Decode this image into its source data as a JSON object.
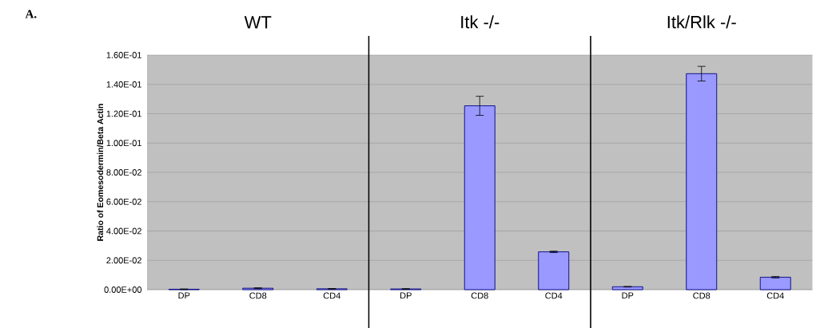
{
  "chart_data": [
    {
      "type": "bar",
      "title": "WT",
      "ylabel": "Ratio of Eomesodermin/Beta Actin",
      "annotations": [
        "A."
      ],
      "categories": [
        "DP",
        "CD8",
        "CD4"
      ],
      "values": [
        0.0003,
        0.001,
        0.0006
      ],
      "errors": [
        0.0002,
        0.0003,
        0.0002
      ],
      "color": "#9999ff",
      "ylim": [
        0,
        0.16
      ],
      "yticks": [
        {
          "value": 0,
          "label": "0.00E+00"
        },
        {
          "value": 0.02,
          "label": "2.00E-02"
        },
        {
          "value": 0.04,
          "label": "4.00E-02"
        },
        {
          "value": 0.06,
          "label": "6.00E-02"
        },
        {
          "value": 0.08,
          "label": "8.00E-02"
        },
        {
          "value": 0.1,
          "label": "1.00E-01"
        },
        {
          "value": 0.12,
          "label": "1.20E-01"
        },
        {
          "value": 0.14,
          "label": "1.40E-01"
        },
        {
          "value": 0.16,
          "label": "1.60E-01"
        }
      ],
      "grid": "y"
    },
    {
      "type": "bar",
      "title": "Itk -/-",
      "categories": [
        "DP",
        "CD8",
        "CD4"
      ],
      "values": [
        0.0005,
        0.1254,
        0.0258
      ],
      "errors": [
        0.0002,
        0.0065,
        0.0005
      ],
      "color": "#9999ff",
      "ylim": [
        0,
        0.16
      ],
      "yticks": [
        {
          "value": 0,
          "label": null
        },
        {
          "value": 0.02,
          "label": null
        },
        {
          "value": 0.04,
          "label": null
        },
        {
          "value": 0.06,
          "label": null
        },
        {
          "value": 0.08,
          "label": null
        },
        {
          "value": 0.1,
          "label": null
        },
        {
          "value": 0.12,
          "label": null
        },
        {
          "value": 0.14,
          "label": null
        },
        {
          "value": 0.16,
          "label": null
        }
      ],
      "grid": "y",
      "tick_labels": "x"
    },
    {
      "type": "bar",
      "title": "Itk/Rlk -/-",
      "categories": [
        "DP",
        "CD8",
        "CD4"
      ],
      "values": [
        0.002,
        0.1473,
        0.0085
      ],
      "errors": [
        0.0002,
        0.005,
        0.0005
      ],
      "color": "#9999ff",
      "ylim": [
        0,
        0.16
      ],
      "yticks": [
        {
          "value": 0,
          "label": null
        },
        {
          "value": 0.02,
          "label": null
        },
        {
          "value": 0.04,
          "label": null
        },
        {
          "value": 0.06,
          "label": null
        },
        {
          "value": 0.08,
          "label": null
        },
        {
          "value": 0.1,
          "label": null
        },
        {
          "value": 0.12,
          "label": null
        },
        {
          "value": 0.14,
          "label": null
        },
        {
          "value": 0.16,
          "label": null
        }
      ],
      "grid": "y",
      "tick_labels": "x"
    }
  ]
}
